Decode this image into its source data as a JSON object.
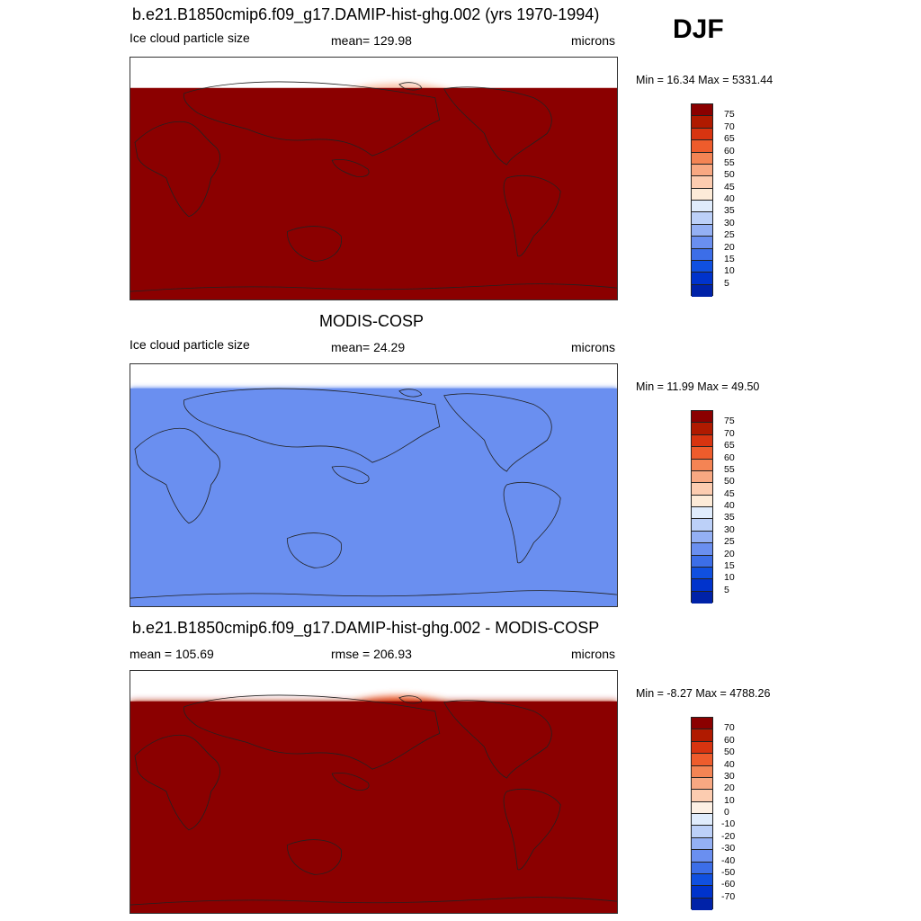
{
  "season": "DJF",
  "panels": [
    {
      "title": "b.e21.B1850cmip6.f09_g17.DAMIP-hist-ghg.002 (yrs 1970-1994)",
      "left_label": "Ice cloud particle size",
      "center_label": "mean= 129.98",
      "right_label": "microns",
      "minmax": "Min =  16.34 Max = 5331.44",
      "colorbar_labels": [
        "75",
        "70",
        "65",
        "60",
        "55",
        "50",
        "45",
        "40",
        "35",
        "30",
        "25",
        "20",
        "15",
        "10",
        "5"
      ],
      "field": "model"
    },
    {
      "title": "MODIS-COSP",
      "left_label": "Ice cloud particle size",
      "center_label": "mean=  24.29",
      "right_label": "microns",
      "minmax": "Min =  11.99 Max =  49.50",
      "colorbar_labels": [
        "75",
        "70",
        "65",
        "60",
        "55",
        "50",
        "45",
        "40",
        "35",
        "30",
        "25",
        "20",
        "15",
        "10",
        "5"
      ],
      "field": "obs"
    },
    {
      "title": "b.e21.B1850cmip6.f09_g17.DAMIP-hist-ghg.002 - MODIS-COSP",
      "left_label": "mean = 105.69",
      "center_label": "rmse = 206.93",
      "right_label": "microns",
      "minmax": "Min =  -8.27 Max = 4788.26",
      "colorbar_labels": [
        "70",
        "60",
        "50",
        "40",
        "30",
        "20",
        "10",
        "0",
        "-10",
        "-20",
        "-30",
        "-40",
        "-50",
        "-60",
        "-70"
      ],
      "field": "diff"
    }
  ],
  "colors": {
    "abs_palette": [
      "#000080",
      "#0022a8",
      "#0033cc",
      "#1050e0",
      "#3c6ee8",
      "#6a8ff0",
      "#94b0f4",
      "#bcd0f8",
      "#e0ecfc",
      "#fdebd8",
      "#fcccb0",
      "#f8a882",
      "#f48454",
      "#ee5c2c",
      "#d83410",
      "#b01a00",
      "#8b0000"
    ],
    "diff_palette": [
      "#000080",
      "#0022a8",
      "#0033cc",
      "#1050e0",
      "#3c6ee8",
      "#6a8ff0",
      "#94b0f4",
      "#bcd0f8",
      "#e0ecfc",
      "#fdf0e4",
      "#fcccb0",
      "#f8a882",
      "#f48454",
      "#ee5c2c",
      "#d83410",
      "#b01a00",
      "#8b0000"
    ]
  }
}
